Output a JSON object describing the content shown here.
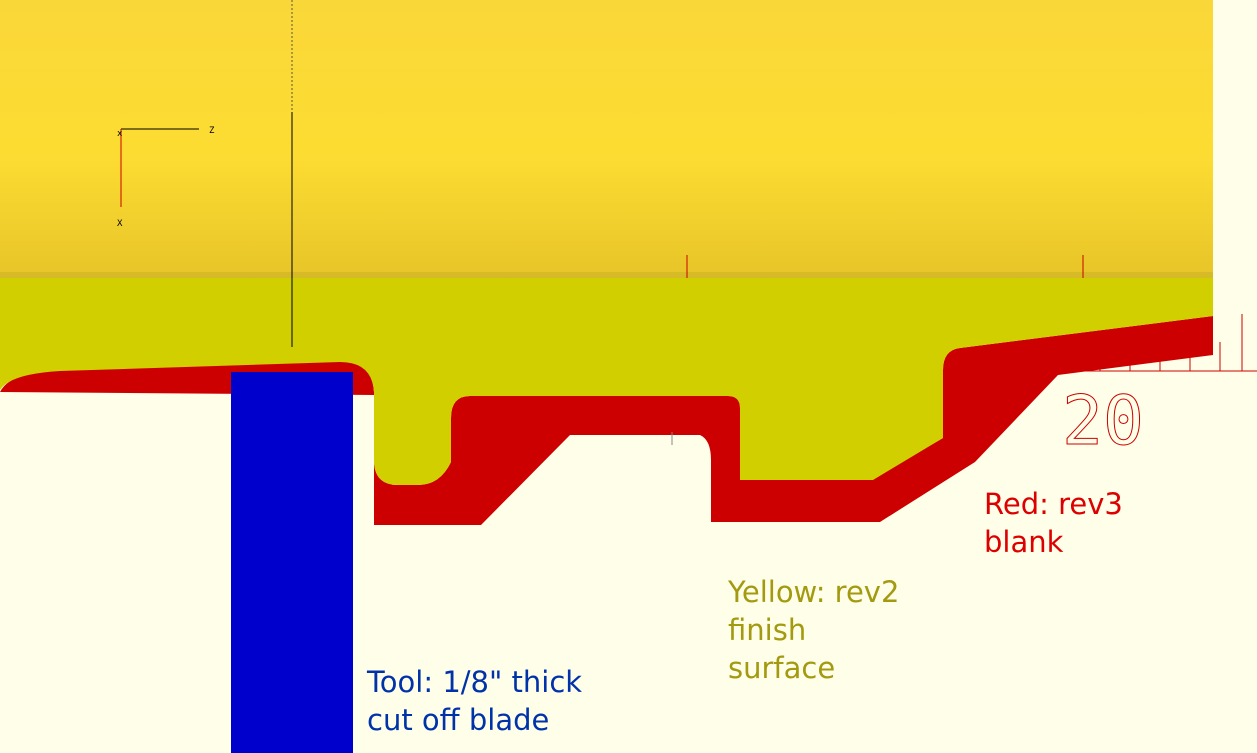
{
  "colors": {
    "background": "#fffee8",
    "upper_gradient_top": "#fad738",
    "upper_gradient_mid": "#fddc32",
    "upper_gradient_bottom": "#e7c428",
    "finish_surface": "#d1cf00",
    "blank": "#cc0000",
    "tool": "#0000cc",
    "tool_text": "#0033aa",
    "finish_text": "#a39a10",
    "blank_text": "#dd0000",
    "ruler": "#cc0000",
    "axis_x": "#000000",
    "axis_y": "#cc0000"
  },
  "axes": {
    "z_label": "Z",
    "x_label": "X"
  },
  "ruler": {
    "number": "20"
  },
  "labels": {
    "tool": {
      "line1": "Tool: 1/8\" thick",
      "line2": "cut off blade"
    },
    "rev2": {
      "line1": "Yellow: rev2",
      "line2": "finish",
      "line3": "surface"
    },
    "rev3": {
      "line1": "Red: rev3",
      "line2": "blank"
    }
  }
}
